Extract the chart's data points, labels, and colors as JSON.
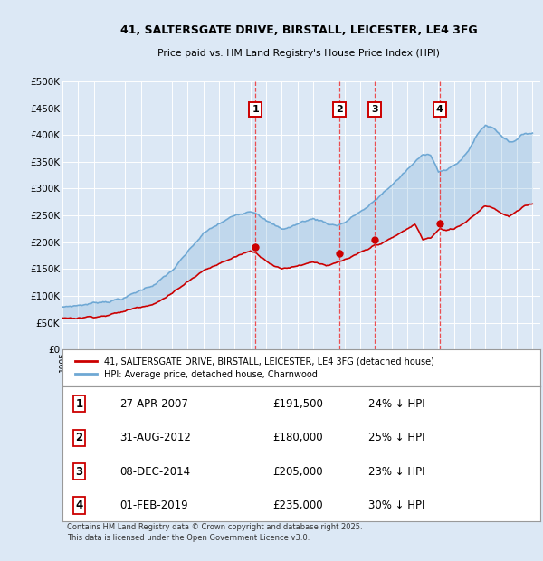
{
  "title": "41, SALTERSGATE DRIVE, BIRSTALL, LEICESTER, LE4 3FG",
  "subtitle": "Price paid vs. HM Land Registry's House Price Index (HPI)",
  "ylim": [
    0,
    500000
  ],
  "yticks": [
    0,
    50000,
    100000,
    150000,
    200000,
    250000,
    300000,
    350000,
    400000,
    450000,
    500000
  ],
  "background_color": "#dce8f5",
  "grid_color": "#ffffff",
  "hpi_color": "#6fa8d4",
  "price_color": "#cc0000",
  "vline_color": "#ee3333",
  "annotation_box_color": "#cc0000",
  "legend_label_price": "41, SALTERSGATE DRIVE, BIRSTALL, LEICESTER, LE4 3FG (detached house)",
  "legend_label_hpi": "HPI: Average price, detached house, Charnwood",
  "footer": "Contains HM Land Registry data © Crown copyright and database right 2025.\nThis data is licensed under the Open Government Licence v3.0.",
  "sales": [
    {
      "num": 1,
      "date": "27-APR-2007",
      "price": 191500,
      "pct": "24%",
      "dir": "↓"
    },
    {
      "num": 2,
      "date": "31-AUG-2012",
      "price": 180000,
      "pct": "25%",
      "dir": "↓"
    },
    {
      "num": 3,
      "date": "08-DEC-2014",
      "price": 205000,
      "pct": "23%",
      "dir": "↓"
    },
    {
      "num": 4,
      "date": "01-FEB-2019",
      "price": 235000,
      "pct": "30%",
      "dir": "↓"
    }
  ],
  "sale_dates_numeric": [
    2007.33,
    2012.67,
    2014.92,
    2019.08
  ],
  "sale_prices": [
    191500,
    180000,
    205000,
    235000
  ],
  "xmin": 1995,
  "xmax": 2025.5
}
